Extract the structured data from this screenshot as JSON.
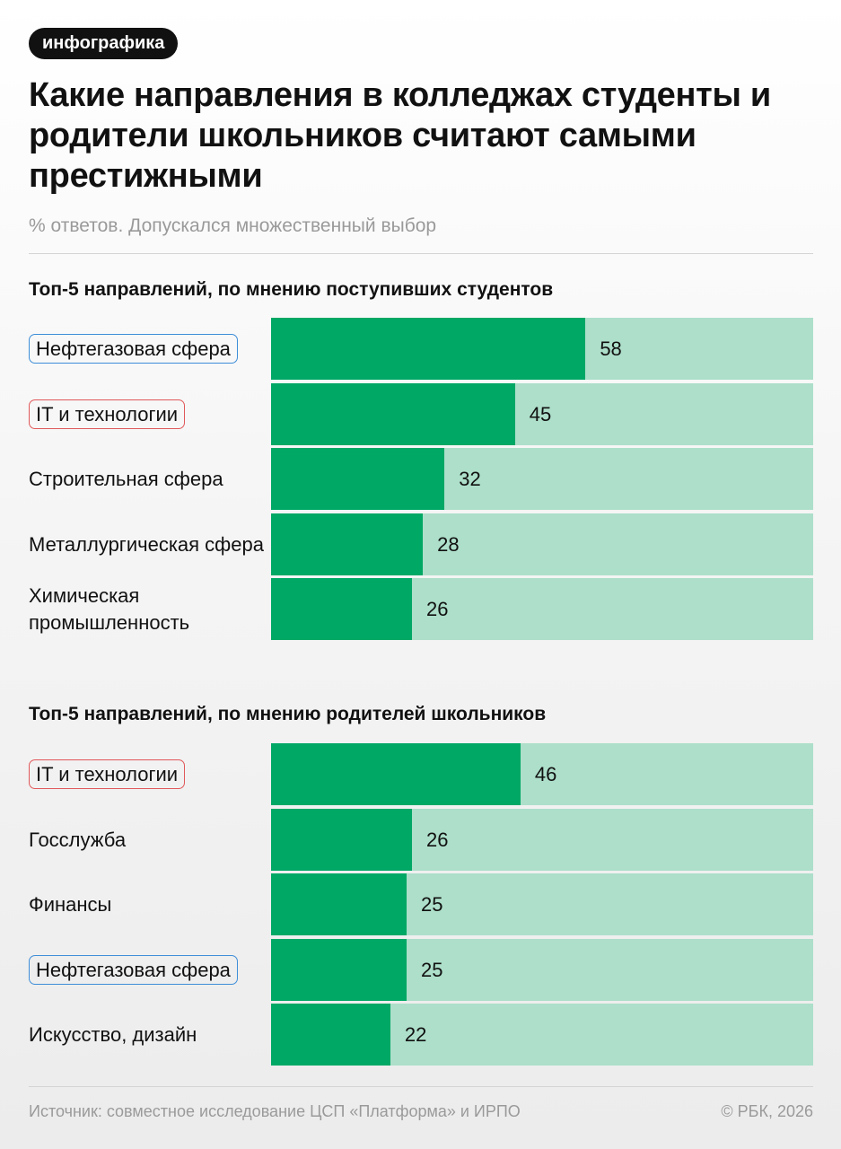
{
  "tag": "инфографика",
  "title": "Какие направления в колледжах студенты и родители школьников считают самыми престижными",
  "subtitle": "% ответов. Допускался множественный выбор",
  "colors": {
    "bar": "#00a865",
    "track": "#addfca",
    "highlight_oil": "#3e8ed8",
    "highlight_it": "#e0585a"
  },
  "chart_data": [
    {
      "type": "bar",
      "title": "Топ-5 направлений, по мнению поступивших студентов",
      "categories": [
        "Нефтегазовая сфера",
        "IT и технологии",
        "Строительная сфера",
        "Металлургическая сфера",
        "Химическая промышленность"
      ],
      "values": [
        58,
        45,
        32,
        28,
        26
      ],
      "highlight": [
        "blue",
        "red",
        "",
        "",
        ""
      ],
      "xlim": [
        0,
        100
      ],
      "orientation": "horizontal",
      "grid": false
    },
    {
      "type": "bar",
      "title": "Топ-5 направлений, по мнению родителей школьников",
      "categories": [
        "IT и технологии",
        "Госслужба",
        "Финансы",
        "Нефтегазовая сфера",
        "Искусство, дизайн"
      ],
      "values": [
        46,
        26,
        25,
        25,
        22
      ],
      "highlight": [
        "red",
        "",
        "",
        "blue",
        ""
      ],
      "xlim": [
        0,
        100
      ],
      "orientation": "horizontal",
      "grid": false
    }
  ],
  "footer": {
    "source": "Источник: совместное исследование ЦСП «Платформа» и ИРПО",
    "copyright": "© РБК, 2026"
  }
}
